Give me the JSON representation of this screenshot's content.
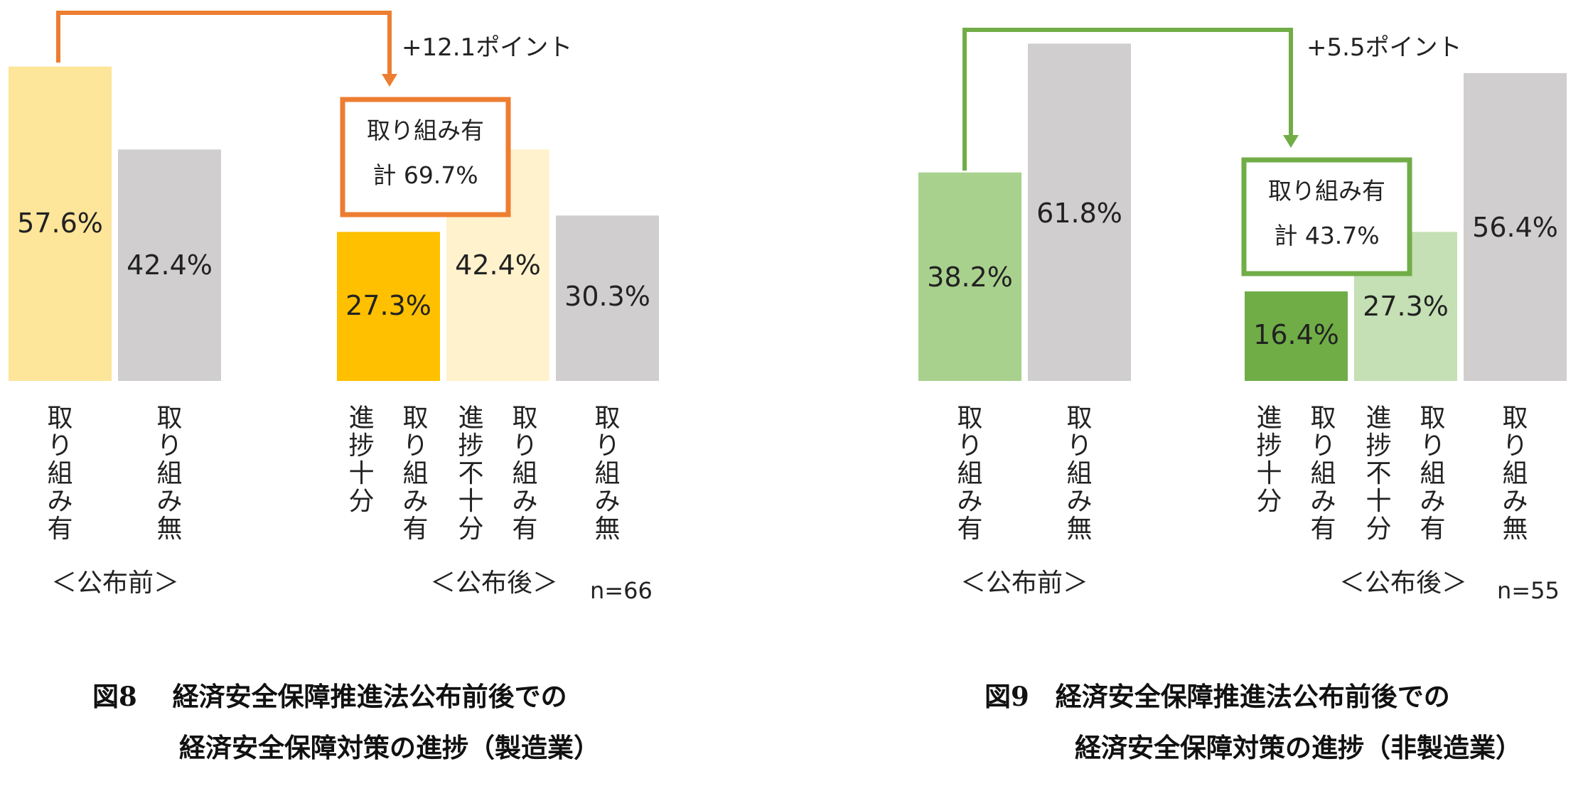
{
  "chart_data": [
    {
      "type": "bar",
      "title": "図8　経済安全保障推進法公布前後での経済安全保障対策の進捗（製造業）",
      "caption_line1": "図8　 経済安全保障推進法公布前後での",
      "caption_line2": "経済安全保障対策の進捗（製造業）",
      "ylim": [
        0,
        70
      ],
      "groups": [
        {
          "label": "＜公布前＞",
          "bars": [
            {
              "category": "取り組み有",
              "value": 57.6,
              "label": "57.6%",
              "color": "#FDE59A"
            },
            {
              "category": "取り組み無",
              "value": 42.4,
              "label": "42.4%",
              "color": "#D0CECE"
            }
          ]
        },
        {
          "label": "＜公布後＞",
          "bars": [
            {
              "category": "進捗十分 取り組み有",
              "category_lines": [
                "進捗十分",
                "取り組み有"
              ],
              "value": 27.3,
              "label": "27.3%",
              "color": "#FFC000"
            },
            {
              "category": "進捗不十分 取り組み有",
              "category_lines": [
                "進捗不十分",
                "取り組み有"
              ],
              "value": 42.4,
              "label": "42.4%",
              "color": "#FFF2CC"
            },
            {
              "category": "取り組み無",
              "value": 30.3,
              "label": "30.3%",
              "color": "#D0CECE"
            }
          ]
        }
      ],
      "total_box": {
        "line1": "取り組み有",
        "line2": "計 69.7%",
        "value": 69.7
      },
      "change_annotation": "+12.1ポイント",
      "n_label": "n=66",
      "accent_color": "#ED7D31"
    },
    {
      "type": "bar",
      "title": "図9　経済安全保障推進法公布前後での経済安全保障対策の進捗（非製造業）",
      "caption_line1": "図9　経済安全保障推進法公布前後での",
      "caption_line2": "経済安全保障対策の進捗（非製造業）",
      "ylim": [
        0,
        70
      ],
      "groups": [
        {
          "label": "＜公布前＞",
          "bars": [
            {
              "category": "取り組み有",
              "value": 38.2,
              "label": "38.2%",
              "color": "#A9D18E"
            },
            {
              "category": "取り組み無",
              "value": 61.8,
              "label": "61.8%",
              "color": "#D0CECE"
            }
          ]
        },
        {
          "label": "＜公布後＞",
          "bars": [
            {
              "category": "進捗十分 取り組み有",
              "category_lines": [
                "進捗十分",
                "取り組み有"
              ],
              "value": 16.4,
              "label": "16.4%",
              "color": "#70AD47"
            },
            {
              "category": "進捗不十分 取り組み有",
              "category_lines": [
                "進捗不十分",
                "取り組み有"
              ],
              "value": 27.3,
              "label": "27.3%",
              "color": "#C5E0B4"
            },
            {
              "category": "取り組み無",
              "value": 56.4,
              "label": "56.4%",
              "color": "#D0CECE"
            }
          ]
        }
      ],
      "total_box": {
        "line1": "取り組み有",
        "line2": "計 43.7%",
        "value": 43.7
      },
      "change_annotation": "+5.5ポイント",
      "n_label": "n=55",
      "accent_color": "#70AD47"
    }
  ]
}
